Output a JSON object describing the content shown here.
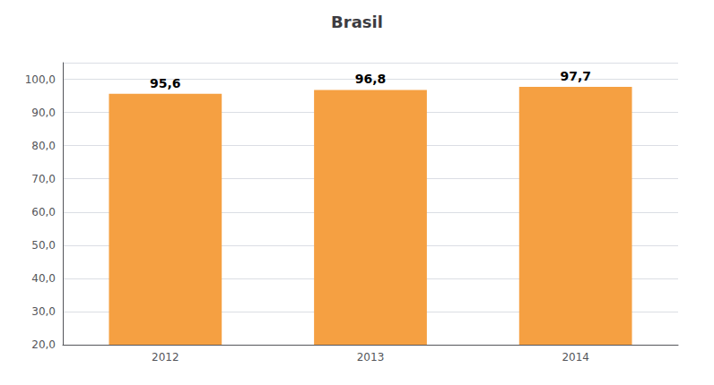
{
  "chart_data": {
    "type": "bar",
    "title": "Brasil",
    "categories": [
      "2012",
      "2013",
      "2014"
    ],
    "values": [
      95.6,
      96.8,
      97.7
    ],
    "value_labels": [
      "95,6",
      "96,8",
      "97,7"
    ],
    "color": "#F5A042",
    "ylim": [
      20,
      105
    ],
    "yticks": [
      {
        "value": 20,
        "label": "20,0"
      },
      {
        "value": 30,
        "label": "30,0"
      },
      {
        "value": 40,
        "label": "40,0"
      },
      {
        "value": 50,
        "label": "50,0"
      },
      {
        "value": 60,
        "label": "60,0"
      },
      {
        "value": 70,
        "label": "70,0"
      },
      {
        "value": 80,
        "label": "80,0"
      },
      {
        "value": 90,
        "label": "90,0"
      },
      {
        "value": 100,
        "label": "100,0"
      }
    ],
    "grid": true,
    "data_labels": true
  }
}
